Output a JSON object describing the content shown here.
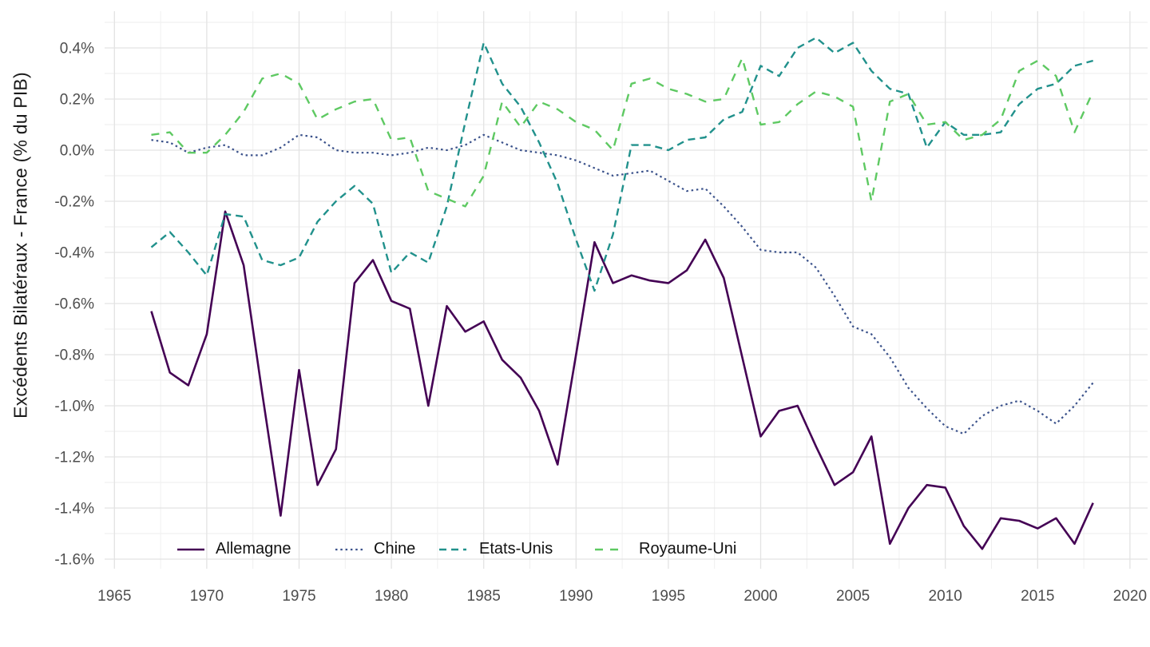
{
  "chart_data": {
    "type": "line",
    "title": "",
    "xlabel": "",
    "ylabel": "Excédents Bilatéraux - France (% du PIB)",
    "x_range": [
      1964.4,
      2020.6
    ],
    "y_range": [
      -1.66,
      0.46
    ],
    "grid": true,
    "legend_position": "bottom-inside-left",
    "x_ticks": [
      {
        "label": "1965",
        "value": 1965
      },
      {
        "label": "1970",
        "value": 1970
      },
      {
        "label": "1975",
        "value": 1975
      },
      {
        "label": "1980",
        "value": 1980
      },
      {
        "label": "1985",
        "value": 1985
      },
      {
        "label": "1990",
        "value": 1990
      },
      {
        "label": "1995",
        "value": 1995
      },
      {
        "label": "2000",
        "value": 2000
      },
      {
        "label": "2005",
        "value": 2005
      },
      {
        "label": "2010",
        "value": 2010
      },
      {
        "label": "2015",
        "value": 2015
      },
      {
        "label": "2020",
        "value": 2020
      }
    ],
    "y_ticks": [
      {
        "label": "0.4%",
        "value": 0.4
      },
      {
        "label": "0.2%",
        "value": 0.2
      },
      {
        "label": "0.0%",
        "value": 0.0
      },
      {
        "label": "-0.2%",
        "value": -0.2
      },
      {
        "label": "-0.4%",
        "value": -0.4
      },
      {
        "label": "-0.6%",
        "value": -0.6
      },
      {
        "label": "-0.8%",
        "value": -0.8
      },
      {
        "label": "-1.0%",
        "value": -1.0
      },
      {
        "label": "-1.2%",
        "value": -1.2
      },
      {
        "label": "-1.4%",
        "value": -1.4
      },
      {
        "label": "-1.6%",
        "value": -1.6
      }
    ],
    "x": [
      1967,
      1968,
      1969,
      1970,
      1971,
      1972,
      1973,
      1974,
      1975,
      1976,
      1977,
      1978,
      1979,
      1980,
      1981,
      1982,
      1983,
      1984,
      1985,
      1986,
      1987,
      1988,
      1989,
      1990,
      1991,
      1992,
      1993,
      1994,
      1995,
      1996,
      1997,
      1998,
      1999,
      2000,
      2001,
      2002,
      2003,
      2004,
      2005,
      2006,
      2007,
      2008,
      2009,
      2010,
      2011,
      2012,
      2013,
      2014,
      2015,
      2016,
      2017,
      2018
    ],
    "series": [
      {
        "name": "Allemagne",
        "color": "#440154",
        "dash": "",
        "width": 2.6,
        "values": [
          -0.63,
          -0.87,
          -0.92,
          -0.72,
          -0.24,
          -0.45,
          -0.95,
          -1.43,
          -0.86,
          -1.31,
          -1.17,
          -0.52,
          -0.43,
          -0.59,
          -0.62,
          -1.0,
          -0.61,
          -0.71,
          -0.67,
          -0.82,
          -0.89,
          -1.02,
          -1.23,
          -0.8,
          -0.36,
          -0.52,
          -0.49,
          -0.51,
          -0.52,
          -0.47,
          -0.35,
          -0.5,
          -0.81,
          -1.12,
          -1.02,
          -1.0,
          -1.16,
          -1.31,
          -1.26,
          -1.12,
          -1.54,
          -1.4,
          -1.31,
          -1.32,
          -1.47,
          -1.56,
          -1.44,
          -1.45,
          -1.48,
          -1.44,
          -1.54,
          -1.38
        ]
      },
      {
        "name": "Chine",
        "color": "#3b528b",
        "dash": "2.5 3.8",
        "width": 2.2,
        "values": [
          0.04,
          0.03,
          -0.01,
          0.01,
          0.02,
          -0.02,
          -0.02,
          0.01,
          0.06,
          0.05,
          0.0,
          -0.01,
          -0.01,
          -0.02,
          -0.01,
          0.01,
          0.0,
          0.02,
          0.06,
          0.03,
          0.0,
          -0.01,
          -0.02,
          -0.04,
          -0.07,
          -0.1,
          -0.09,
          -0.08,
          -0.12,
          -0.16,
          -0.15,
          -0.22,
          -0.3,
          -0.39,
          -0.4,
          -0.4,
          -0.46,
          -0.57,
          -0.69,
          -0.72,
          -0.81,
          -0.93,
          -1.01,
          -1.08,
          -1.11,
          -1.04,
          -1.0,
          -0.98,
          -1.02,
          -1.07,
          -1.0,
          -0.91
        ]
      },
      {
        "name": "Etats-Unis",
        "color": "#21918c",
        "dash": "9 6",
        "width": 2.4,
        "values": [
          -0.38,
          -0.32,
          -0.4,
          -0.49,
          -0.25,
          -0.26,
          -0.43,
          -0.45,
          -0.42,
          -0.28,
          -0.2,
          -0.14,
          -0.21,
          -0.48,
          -0.4,
          -0.44,
          -0.22,
          0.11,
          0.42,
          0.26,
          0.17,
          0.03,
          -0.13,
          -0.35,
          -0.55,
          -0.33,
          0.02,
          0.02,
          0.0,
          0.04,
          0.05,
          0.12,
          0.15,
          0.33,
          0.29,
          0.4,
          0.44,
          0.38,
          0.42,
          0.31,
          0.24,
          0.22,
          0.01,
          0.11,
          0.06,
          0.06,
          0.07,
          0.18,
          0.24,
          0.26,
          0.33,
          0.35
        ]
      },
      {
        "name": "Royaume-Uni",
        "color": "#5ec962",
        "dash": "10 9",
        "width": 2.4,
        "values": [
          0.06,
          0.07,
          -0.01,
          -0.01,
          0.06,
          0.15,
          0.28,
          0.3,
          0.26,
          0.12,
          0.16,
          0.19,
          0.2,
          0.04,
          0.05,
          -0.16,
          -0.19,
          -0.22,
          -0.1,
          0.19,
          0.09,
          0.19,
          0.16,
          0.11,
          0.08,
          0.0,
          0.26,
          0.28,
          0.24,
          0.22,
          0.19,
          0.2,
          0.36,
          0.1,
          0.11,
          0.18,
          0.23,
          0.21,
          0.17,
          -0.2,
          0.19,
          0.22,
          0.1,
          0.11,
          0.04,
          0.06,
          0.12,
          0.31,
          0.35,
          0.29,
          0.07,
          0.23
        ]
      }
    ]
  },
  "legend": {
    "items": [
      {
        "label": "Allemagne"
      },
      {
        "label": "Chine"
      },
      {
        "label": "Etats-Unis"
      },
      {
        "label": "Royaume-Uni"
      }
    ]
  }
}
